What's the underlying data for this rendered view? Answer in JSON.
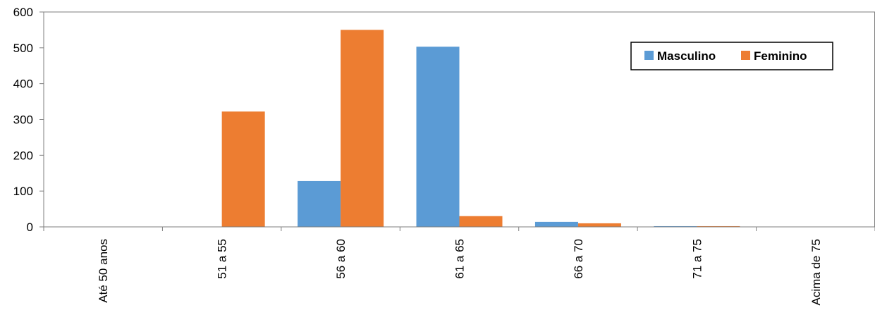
{
  "chart_data": {
    "type": "bar",
    "title": "",
    "xlabel": "",
    "ylabel": "",
    "categories": [
      "Até 50 anos",
      "51  a  55",
      "56  a  60",
      "61  a  65",
      "66  a  70",
      "71  a  75",
      "Acima de 75"
    ],
    "series": [
      {
        "name": "Masculino",
        "color": "#5B9BD5",
        "values": [
          0,
          0,
          128,
          503,
          14,
          2,
          0
        ]
      },
      {
        "name": "Feminino",
        "color": "#ED7D31",
        "values": [
          0,
          322,
          550,
          30,
          10,
          2,
          0
        ]
      }
    ],
    "ylim": [
      0,
      600
    ],
    "yticks": [
      0,
      100,
      200,
      300,
      400,
      500,
      600
    ],
    "grid": false,
    "legend_position": "top-right"
  }
}
